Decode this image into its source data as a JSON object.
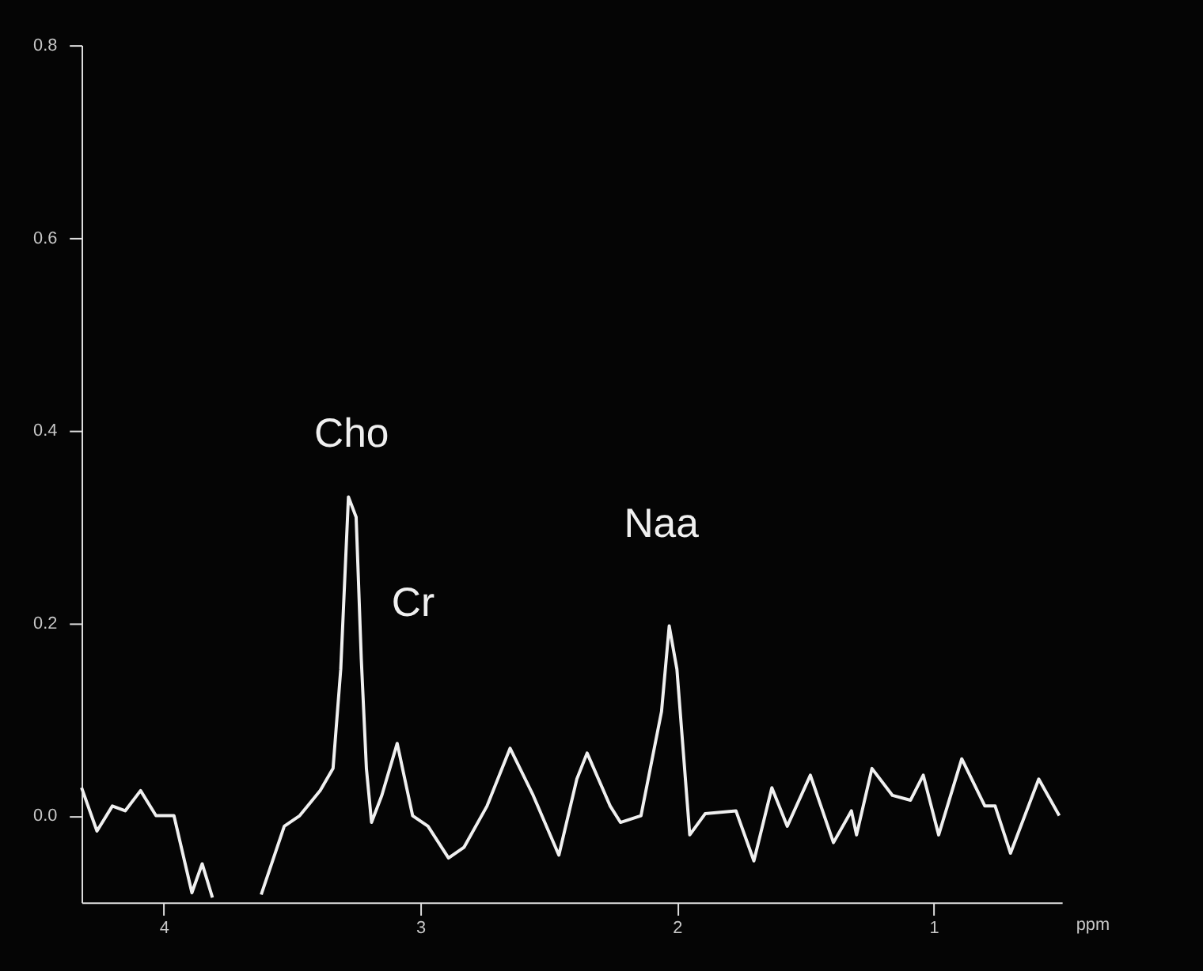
{
  "chart_data": {
    "type": "line",
    "xlabel": "ppm",
    "xlim": [
      4.32,
      0.5
    ],
    "xticks": [
      4,
      3,
      2,
      1
    ],
    "ylim": [
      -0.09,
      0.8
    ],
    "yticks": [
      {
        "value": 0,
        "label": "0.0"
      },
      0.2,
      0.4,
      0.6,
      0.8
    ],
    "grid": false,
    "marker": "none",
    "line_style": "solid",
    "series": [
      {
        "color": "#f0f0f0",
        "x": [
          4.32,
          4.26,
          4.2,
          4.15,
          4.09,
          4.03,
          3.96,
          3.89,
          3.85,
          3.81,
          3.71,
          3.62,
          3.53,
          3.47,
          3.39,
          3.34,
          3.31,
          3.28,
          3.25,
          3.23,
          3.21,
          3.19,
          3.15,
          3.09,
          3.03,
          2.97,
          2.89,
          2.83,
          2.74,
          2.65,
          2.56,
          2.46,
          2.39,
          2.35,
          2.26,
          2.22,
          2.14,
          2.06,
          2.03,
          2.0,
          1.95,
          1.89,
          1.77,
          1.7,
          1.63,
          1.57,
          1.48,
          1.39,
          1.32,
          1.3,
          1.24,
          1.16,
          1.09,
          1.04,
          0.98,
          0.89,
          0.8,
          0.76,
          0.7,
          0.59,
          0.51
        ],
        "values": [
          0.029,
          -0.016,
          0.01,
          0.005,
          0.026,
          0,
          0,
          -0.08,
          -0.05,
          -0.085,
          null,
          -0.082,
          -0.011,
          0,
          0.026,
          0.049,
          0.152,
          0.331,
          0.31,
          0.163,
          0.049,
          -0.007,
          0.021,
          0.075,
          0,
          -0.011,
          -0.044,
          -0.033,
          0.01,
          0.07,
          0.021,
          -0.041,
          0.038,
          0.065,
          0.01,
          -0.007,
          0,
          0.108,
          0.197,
          0.152,
          -0.02,
          0.002,
          0.005,
          -0.047,
          0.029,
          -0.011,
          0.042,
          -0.028,
          0.005,
          -0.02,
          0.049,
          0.021,
          0.016,
          0.042,
          -0.02,
          0.059,
          0.01,
          0.01,
          -0.039,
          0.038,
          0
        ]
      }
    ],
    "annotations": [
      {
        "text": "Cho",
        "x": 3.28,
        "y": 0.331
      },
      {
        "text": "Cr",
        "x": 3.23,
        "y": 0.163
      },
      {
        "text": "Naa",
        "x": 2.03,
        "y": 0.197
      }
    ]
  }
}
